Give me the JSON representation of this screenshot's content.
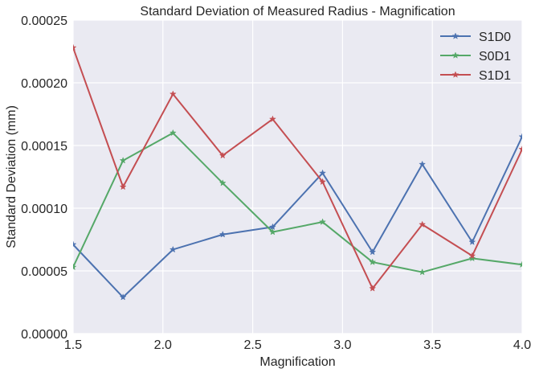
{
  "chart_data": {
    "type": "line",
    "title": "Standard Deviation of Measured Radius - Magnification",
    "xlabel": "Magnification",
    "ylabel": "Standard Deviation (mm)",
    "xlim": [
      1.5,
      4.0
    ],
    "ylim": [
      0.0,
      0.00025
    ],
    "xticks": [
      1.5,
      2.0,
      2.5,
      3.0,
      3.5,
      4.0
    ],
    "xtick_labels": [
      "1.5",
      "2.0",
      "2.5",
      "3.0",
      "3.5",
      "4.0"
    ],
    "yticks": [
      0.0,
      5e-05,
      0.0001,
      0.00015,
      0.0002,
      0.00025
    ],
    "ytick_labels": [
      "0.00000",
      "0.00005",
      "0.00010",
      "0.00015",
      "0.00020",
      "0.00025"
    ],
    "grid": true,
    "legend_position": "top-right",
    "x": [
      1.5,
      1.778,
      2.056,
      2.333,
      2.611,
      2.889,
      3.167,
      3.444,
      3.722,
      4.0
    ],
    "series": [
      {
        "name": "S1D0",
        "color": "#4c72b0",
        "marker": "star",
        "values": [
          7.1e-05,
          2.9e-05,
          6.7e-05,
          7.9e-05,
          8.5e-05,
          0.000128,
          6.5e-05,
          0.000135,
          7.3e-05,
          0.000157
        ]
      },
      {
        "name": "S0D1",
        "color": "#55a868",
        "marker": "star",
        "values": [
          5.3e-05,
          0.000138,
          0.00016,
          0.00012,
          8.1e-05,
          8.9e-05,
          5.7e-05,
          4.9e-05,
          6e-05,
          5.5e-05
        ]
      },
      {
        "name": "S1D1",
        "color": "#c44e52",
        "marker": "star",
        "values": [
          0.000228,
          0.000117,
          0.000191,
          0.000142,
          0.000171,
          0.000121,
          3.6e-05,
          8.7e-05,
          6.2e-05,
          0.000147
        ]
      }
    ]
  },
  "colors": {
    "plot_background": "#eaeaf2",
    "grid": "#ffffff",
    "text": "#262626"
  }
}
